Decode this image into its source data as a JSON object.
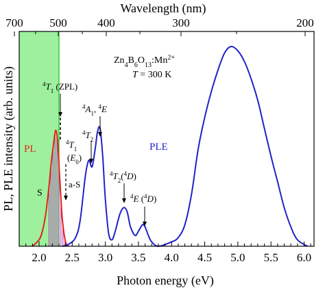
{
  "chart_data": {
    "type": "line",
    "xlabel": "Photon energy (eV)",
    "ylabel": "PL, PLE intensity (arb. units)",
    "top_xlabel": "Wavelength (nm)",
    "xlim": [
      1.7,
      6.15
    ],
    "ylim": [
      0,
      1.0
    ],
    "x_ticks": [
      "2.0",
      "2.5",
      "3.0",
      "3.5",
      "4.0",
      "4.5",
      "5.0",
      "5.5",
      "6.0"
    ],
    "x_tick_values": [
      2.0,
      2.5,
      3.0,
      3.5,
      4.0,
      4.5,
      5.0,
      5.5,
      6.0
    ],
    "top_ticks": [
      "700",
      "500",
      "400",
      "300",
      "200"
    ],
    "top_tick_values_nm": [
      700,
      500,
      400,
      300,
      200
    ],
    "grid": false,
    "legend": "none",
    "highlight_band": {
      "x_start": 1.7,
      "x_end": 2.3,
      "color": "#9ef09e"
    },
    "colors": {
      "pl": "#e8211d",
      "ple": "#2121c8",
      "hatch": "#b04fb8",
      "band_edge": "#33cc33"
    },
    "series": [
      {
        "name": "PL",
        "color": "#e8211d",
        "x": [
          1.9,
          2.0,
          2.05,
          2.1,
          2.15,
          2.18,
          2.22,
          2.25,
          2.28,
          2.31,
          2.35,
          2.4,
          2.45
        ],
        "y": [
          0.0,
          0.03,
          0.07,
          0.15,
          0.28,
          0.38,
          0.48,
          0.54,
          0.49,
          0.33,
          0.13,
          0.02,
          0.0
        ]
      },
      {
        "name": "PLE",
        "color": "#2121c8",
        "x": [
          2.35,
          2.45,
          2.55,
          2.62,
          2.7,
          2.75,
          2.8,
          2.85,
          2.88,
          2.92,
          2.96,
          3.0,
          3.05,
          3.1,
          3.15,
          3.22,
          3.28,
          3.33,
          3.38,
          3.45,
          3.5,
          3.56,
          3.6,
          3.65,
          3.7,
          3.8,
          4.0,
          4.1,
          4.2,
          4.3,
          4.4,
          4.5,
          4.6,
          4.7,
          4.8,
          4.9,
          5.0,
          5.1,
          5.2,
          5.3,
          5.4,
          5.5,
          5.6,
          5.7,
          5.8,
          5.9,
          6.05
        ],
        "y": [
          0.0,
          0.01,
          0.04,
          0.12,
          0.33,
          0.4,
          0.37,
          0.46,
          0.53,
          0.55,
          0.42,
          0.22,
          0.06,
          0.03,
          0.07,
          0.15,
          0.18,
          0.16,
          0.09,
          0.05,
          0.07,
          0.1,
          0.09,
          0.05,
          0.02,
          0.0,
          0.02,
          0.04,
          0.1,
          0.24,
          0.45,
          0.6,
          0.72,
          0.82,
          0.9,
          0.93,
          0.91,
          0.86,
          0.78,
          0.68,
          0.55,
          0.42,
          0.3,
          0.18,
          0.09,
          0.03,
          0.0
        ]
      }
    ],
    "hatched_lines_x": [
      2.15,
      2.18,
      2.21,
      2.24,
      2.27,
      2.3,
      2.33,
      2.36,
      2.39,
      2.42
    ],
    "annotations": {
      "formula": "Zn4B6O13:Mn2+",
      "temperature": "T = 300 K",
      "pl": "PL",
      "ple": "PLE",
      "s": "S",
      "as": "a-S",
      "zpl": "4T1 (ZPL)",
      "t1": "4T1",
      "e0": "(E0)",
      "t2": "4T2",
      "a1e": "4A1, 4E",
      "t2d": "4T2 (4D)",
      "ed": "4E (4D)"
    }
  }
}
